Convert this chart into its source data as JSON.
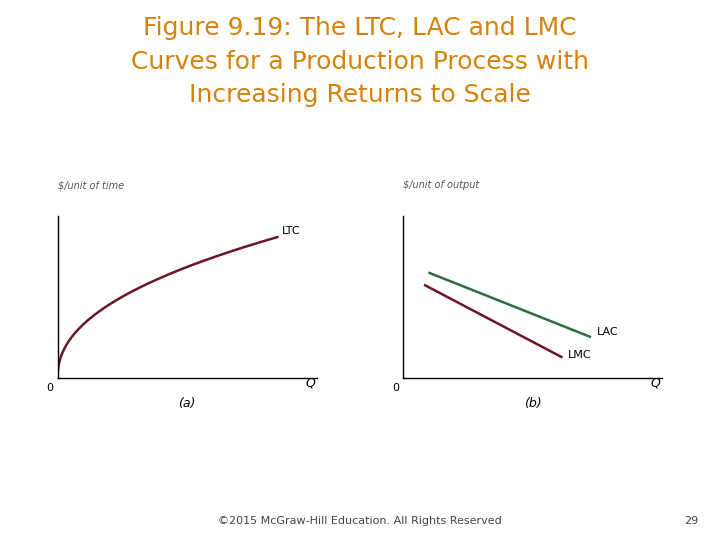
{
  "title_line1": "Figure 9.19: The LTC, LAC and LMC",
  "title_line2": "Curves for a Production Process with",
  "title_line3": "Increasing Returns to Scale",
  "title_color": "#D4820A",
  "title_fontsize": 18,
  "background_color": "#FFFFFF",
  "panel_a_ylabel": "$/unit of time",
  "panel_b_ylabel": "$/unit of output",
  "xlabel": "Q",
  "panel_a_label": "(a)",
  "panel_b_label": "(b)",
  "ltc_color": "#6B1525",
  "lac_color": "#2E6B3E",
  "lmc_color": "#6B1525",
  "ltc_label": "LTC",
  "lac_label": "LAC",
  "lmc_label": "LMC",
  "footer": "©2015 McGraw-Hill Education. All Rights Reserved",
  "footer_fontsize": 8,
  "page_number": "29",
  "zero_label": "0"
}
